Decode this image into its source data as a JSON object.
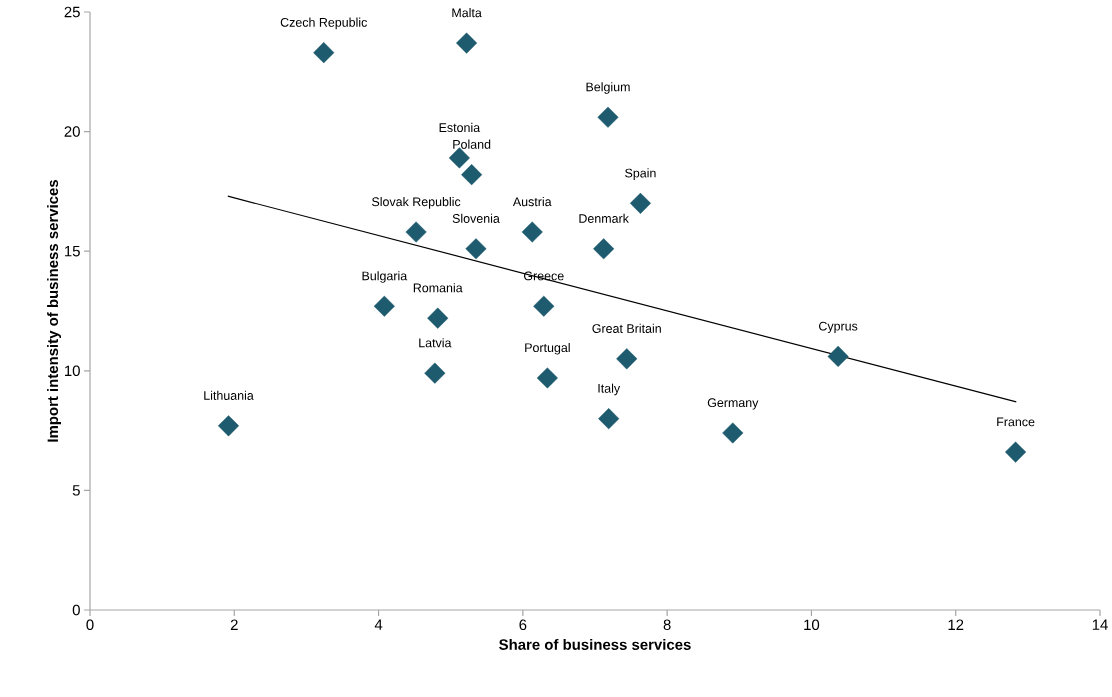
{
  "chart_data": {
    "type": "scatter",
    "xlabel": "Share of business services",
    "ylabel": "Import intensity of business services",
    "xlim": [
      0,
      14
    ],
    "xticks": [
      0,
      2,
      4,
      6,
      8,
      10,
      12,
      14
    ],
    "ylim": [
      0,
      25
    ],
    "yticks": [
      0,
      5,
      10,
      15,
      20,
      25
    ],
    "marker": "diamond",
    "series": [
      {
        "type": "scatter",
        "color": "#1f5b6e",
        "x": [
          3.24,
          5.22,
          7.18,
          5.12,
          5.29,
          7.63,
          4.52,
          6.13,
          5.35,
          7.12,
          4.08,
          6.29,
          4.82,
          4.78,
          6.34,
          7.44,
          7.19,
          1.92,
          8.91,
          10.37,
          12.83
        ],
        "values": [
          23.3,
          23.7,
          20.6,
          18.9,
          18.2,
          17.0,
          15.8,
          15.8,
          15.1,
          15.1,
          12.7,
          12.7,
          12.2,
          9.9,
          9.7,
          10.5,
          8.0,
          7.7,
          7.4,
          10.6,
          6.6
        ]
      },
      {
        "type": "line",
        "color": "#000000",
        "marker": "none",
        "x": [
          1.91,
          12.84
        ],
        "values": [
          17.3,
          8.7
        ]
      }
    ],
    "annotations": [
      {
        "text": "Czech Republic",
        "x": 3.24,
        "y": 23.3
      },
      {
        "text": "Malta",
        "x": 5.22,
        "y": 23.7
      },
      {
        "text": "Belgium",
        "x": 7.18,
        "y": 20.6
      },
      {
        "text": "Estonia",
        "x": 5.12,
        "y": 18.9
      },
      {
        "text": "Poland",
        "x": 5.29,
        "y": 18.2
      },
      {
        "text": "Spain",
        "x": 7.63,
        "y": 17.0
      },
      {
        "text": "Slovak Republic",
        "x": 4.52,
        "y": 15.8
      },
      {
        "text": "Austria",
        "x": 6.13,
        "y": 15.8
      },
      {
        "text": "Slovenia",
        "x": 5.35,
        "y": 15.1
      },
      {
        "text": "Denmark",
        "x": 7.12,
        "y": 15.1
      },
      {
        "text": "Bulgaria",
        "x": 4.08,
        "y": 12.7
      },
      {
        "text": "Greece",
        "x": 6.29,
        "y": 12.7
      },
      {
        "text": "Romania",
        "x": 4.82,
        "y": 12.2
      },
      {
        "text": "Latvia",
        "x": 4.78,
        "y": 9.9
      },
      {
        "text": "Portugal",
        "x": 6.34,
        "y": 9.7
      },
      {
        "text": "Great Britain",
        "x": 7.44,
        "y": 10.5
      },
      {
        "text": "Italy",
        "x": 7.19,
        "y": 8.0
      },
      {
        "text": "Lithuania",
        "x": 1.92,
        "y": 7.7
      },
      {
        "text": "Germany",
        "x": 8.91,
        "y": 7.4
      },
      {
        "text": "Cyprus",
        "x": 10.37,
        "y": 10.6
      },
      {
        "text": "France",
        "x": 12.83,
        "y": 6.6
      }
    ]
  }
}
